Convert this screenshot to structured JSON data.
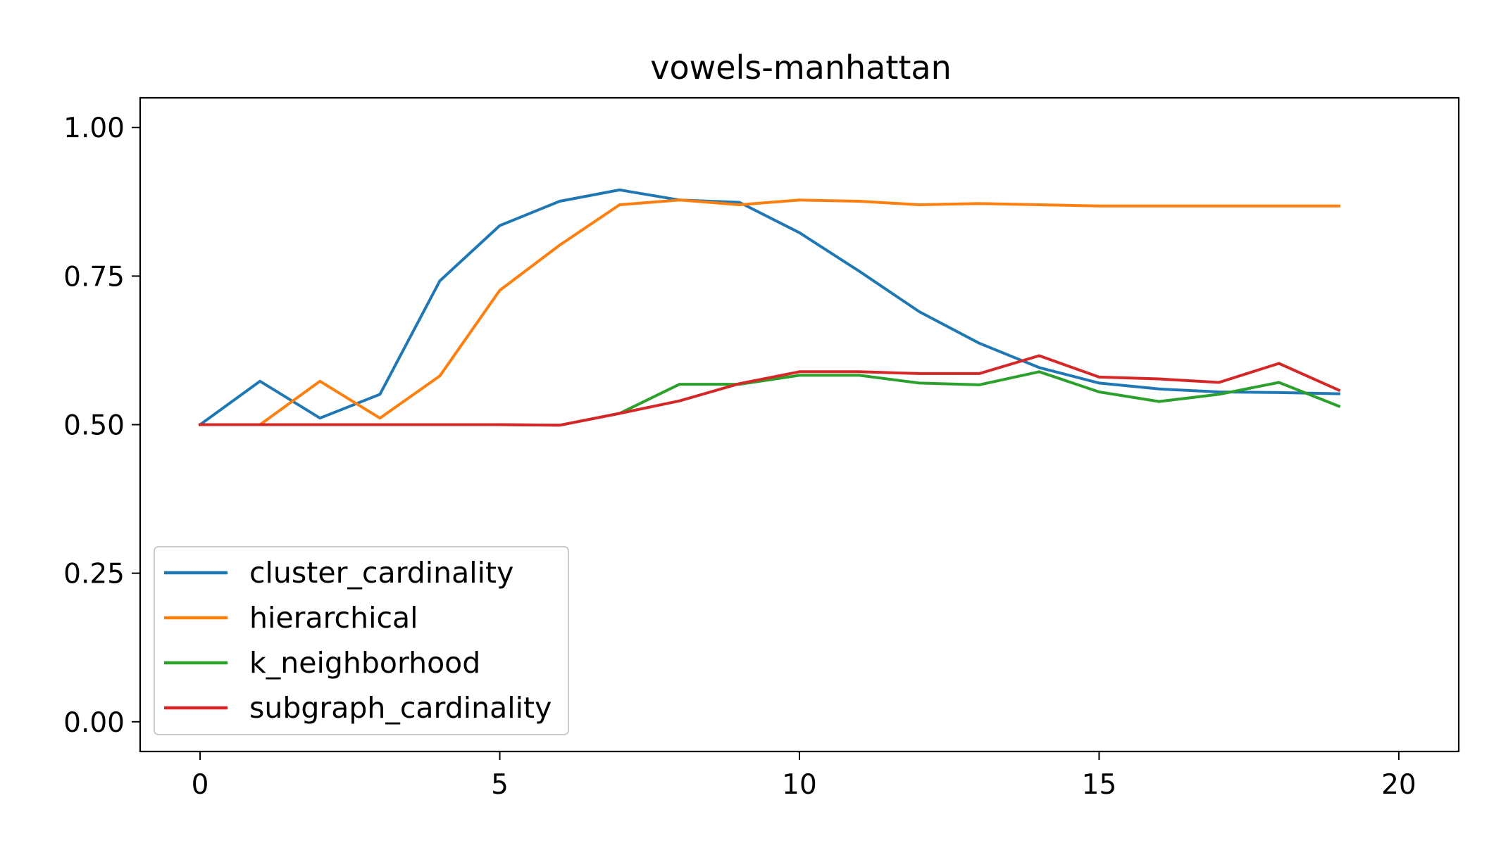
{
  "chart_data": {
    "type": "line",
    "title": "vowels-manhattan",
    "xlabel": "",
    "ylabel": "",
    "xlim": [
      -1,
      21
    ],
    "ylim": [
      -0.05,
      1.05
    ],
    "xticks": [
      0,
      5,
      10,
      15,
      20
    ],
    "xtick_labels": [
      "0",
      "5",
      "10",
      "15",
      "20"
    ],
    "yticks": [
      0.0,
      0.25,
      0.5,
      0.75,
      1.0
    ],
    "ytick_labels": [
      "0.00",
      "0.25",
      "0.50",
      "0.75",
      "1.00"
    ],
    "grid": false,
    "legend_position": "lower-left",
    "x": [
      0,
      1,
      2,
      3,
      4,
      5,
      6,
      7,
      8,
      9,
      10,
      11,
      12,
      13,
      14,
      15,
      16,
      17,
      18,
      19
    ],
    "series": [
      {
        "name": "cluster_cardinality",
        "color": "#1f77b4",
        "values": [
          0.5,
          0.573,
          0.511,
          0.551,
          0.742,
          0.835,
          0.876,
          0.895,
          0.878,
          0.874,
          0.823,
          0.758,
          0.69,
          0.637,
          0.596,
          0.57,
          0.56,
          0.555,
          0.554,
          0.552
        ]
      },
      {
        "name": "hierarchical",
        "color": "#ff7f0e",
        "values": [
          0.5,
          0.5,
          0.573,
          0.511,
          0.582,
          0.726,
          0.802,
          0.87,
          0.878,
          0.87,
          0.878,
          0.876,
          0.87,
          0.872,
          0.87,
          0.868,
          0.868,
          0.868,
          0.868,
          0.868
        ]
      },
      {
        "name": "k_neighborhood",
        "color": "#2ca02c",
        "values": [
          0.5,
          0.5,
          0.5,
          0.5,
          0.5,
          0.5,
          0.499,
          0.519,
          0.568,
          0.568,
          0.583,
          0.583,
          0.57,
          0.567,
          0.589,
          0.555,
          0.539,
          0.551,
          0.571,
          0.531
        ]
      },
      {
        "name": "subgraph_cardinality",
        "color": "#d62728",
        "values": [
          0.5,
          0.5,
          0.5,
          0.5,
          0.5,
          0.5,
          0.499,
          0.519,
          0.54,
          0.569,
          0.589,
          0.589,
          0.586,
          0.586,
          0.616,
          0.58,
          0.577,
          0.571,
          0.603,
          0.558
        ]
      }
    ]
  }
}
